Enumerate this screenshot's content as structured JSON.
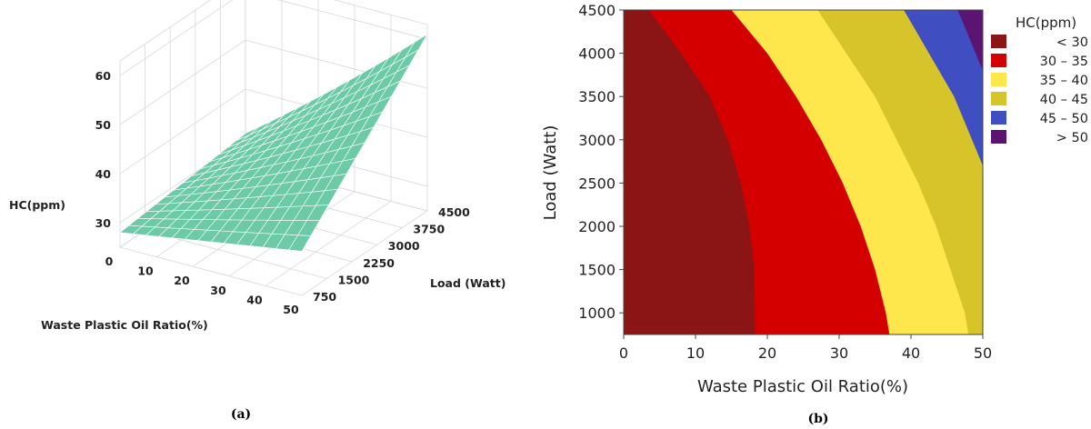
{
  "captions": {
    "a": "(a)",
    "b": "(b)"
  },
  "chart_data": [
    {
      "type": "surface",
      "xlabel": "Waste Plastic Oil Ratio(%)",
      "ylabel": "Load (Watt)",
      "zlabel": "HC(ppm)",
      "x_ticks": [
        "0",
        "10",
        "20",
        "30",
        "40",
        "50"
      ],
      "y_ticks": [
        "750",
        "1500",
        "2250",
        "3000",
        "3750",
        "4500"
      ],
      "z_ticks": [
        "30",
        "40",
        "50",
        "60"
      ],
      "xlim": [
        0,
        50
      ],
      "ylim": [
        750,
        4500
      ],
      "zlim": [
        25,
        63
      ],
      "surface_color": "#6dcaa7",
      "corner_values": [
        {
          "x": 0,
          "y": 750,
          "z": 28
        },
        {
          "x": 50,
          "y": 750,
          "z": 34
        },
        {
          "x": 0,
          "y": 4500,
          "z": 31
        },
        {
          "x": 50,
          "y": 4500,
          "z": 58
        }
      ]
    },
    {
      "type": "contour",
      "xlabel": "Waste Plastic Oil Ratio(%)",
      "ylabel": "Load (Watt)",
      "x_ticks": [
        "0",
        "10",
        "20",
        "30",
        "40",
        "50"
      ],
      "y_ticks": [
        "1000",
        "1500",
        "2000",
        "2500",
        "3000",
        "3500",
        "4000",
        "4500"
      ],
      "xlim": [
        0,
        50
      ],
      "ylim": [
        750,
        4500
      ],
      "legend_title": "HC(ppm)",
      "legend_position": "right",
      "legend": [
        {
          "label": "<  30",
          "color": "#8b1414"
        },
        {
          "label": "30  –  35",
          "color": "#d40000"
        },
        {
          "label": "35  –  40",
          "color": "#fde74c"
        },
        {
          "label": "40  –  45",
          "color": "#d6c42a"
        },
        {
          "label": "45  –  50",
          "color": "#3f4fc2"
        },
        {
          "label": ">  50",
          "color": "#5c1473"
        }
      ],
      "boundaries": [
        {
          "level": 30,
          "points": [
            [
              3.5,
              4500
            ],
            [
              8,
              4000
            ],
            [
              12,
              3500
            ],
            [
              14.5,
              3000
            ],
            [
              16.3,
              2500
            ],
            [
              17.5,
              2000
            ],
            [
              18.2,
              1500
            ],
            [
              18.3,
              750
            ]
          ]
        },
        {
          "level": 35,
          "points": [
            [
              15,
              4500
            ],
            [
              20,
              4000
            ],
            [
              24,
              3500
            ],
            [
              27.5,
              3000
            ],
            [
              30.5,
              2500
            ],
            [
              33,
              2000
            ],
            [
              35,
              1500
            ],
            [
              36.5,
              1000
            ],
            [
              37,
              750
            ]
          ]
        },
        {
          "level": 40,
          "points": [
            [
              27,
              4500
            ],
            [
              31,
              4000
            ],
            [
              35,
              3500
            ],
            [
              38,
              3000
            ],
            [
              41,
              2500
            ],
            [
              43.5,
              2000
            ],
            [
              45.5,
              1500
            ],
            [
              47.5,
              1000
            ],
            [
              48,
              750
            ]
          ]
        },
        {
          "level": 45,
          "points": [
            [
              39,
              4500
            ],
            [
              42.5,
              4000
            ],
            [
              46,
              3500
            ],
            [
              48.5,
              3000
            ],
            [
              50,
              2700
            ]
          ]
        },
        {
          "level": 50,
          "points": [
            [
              46.5,
              4500
            ],
            [
              48.5,
              4100
            ],
            [
              50,
              3800
            ]
          ]
        }
      ]
    }
  ]
}
